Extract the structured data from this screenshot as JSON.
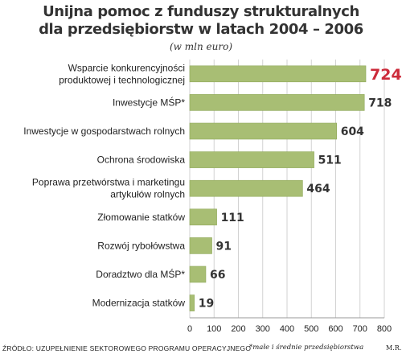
{
  "header": {
    "title_line1": "Unijna pomoc z funduszy strukturalnych",
    "title_line2": "dla przedsiębiorstw w latach 2004 – 2006",
    "subtitle": "(w mln euro)"
  },
  "footer": {
    "source": "ŹRÓDŁO: UZUPEŁNIENIE SEKTOROWEGO PROGRAMU OPERACYJNEGO",
    "footnote": "*małe i średnie przedsiębiorstwa",
    "initials": "M.R."
  },
  "colors": {
    "bar": "#a8be74",
    "bar_edge": "#8fa85a",
    "highlight": "#cc2b3a",
    "grid": "#d2d2d2",
    "text": "#222222"
  },
  "chart_data": {
    "type": "bar",
    "orientation": "horizontal",
    "categories": [
      [
        "Wsparcie konkurencyjności",
        "produktowej i technologicznej"
      ],
      [
        "Inwestycje MŚP*"
      ],
      [
        "Inwestycje w gospodarstwach rolnych"
      ],
      [
        "Ochrona środowiska"
      ],
      [
        "Poprawa przetwórstwa i marketingu",
        "artykułów rolnych"
      ],
      [
        "Złomowanie statków"
      ],
      [
        "Rozwój rybołówstwa"
      ],
      [
        "Doradztwo dla MŚP*"
      ],
      [
        "Modernizacja statków"
      ]
    ],
    "values": [
      724,
      718,
      604,
      511,
      464,
      111,
      91,
      66,
      19
    ],
    "value_labels": [
      "724",
      "718",
      "604",
      "511",
      "464",
      "111",
      "91",
      "66",
      "19"
    ],
    "highlight_index": 0,
    "xlim": [
      0,
      800
    ],
    "xticks": [
      0,
      100,
      200,
      300,
      400,
      500,
      600,
      700,
      800
    ],
    "xtick_labels": [
      "0",
      "100",
      "200",
      "300",
      "400",
      "500",
      "600",
      "700",
      "800"
    ],
    "grid": "vertical"
  }
}
